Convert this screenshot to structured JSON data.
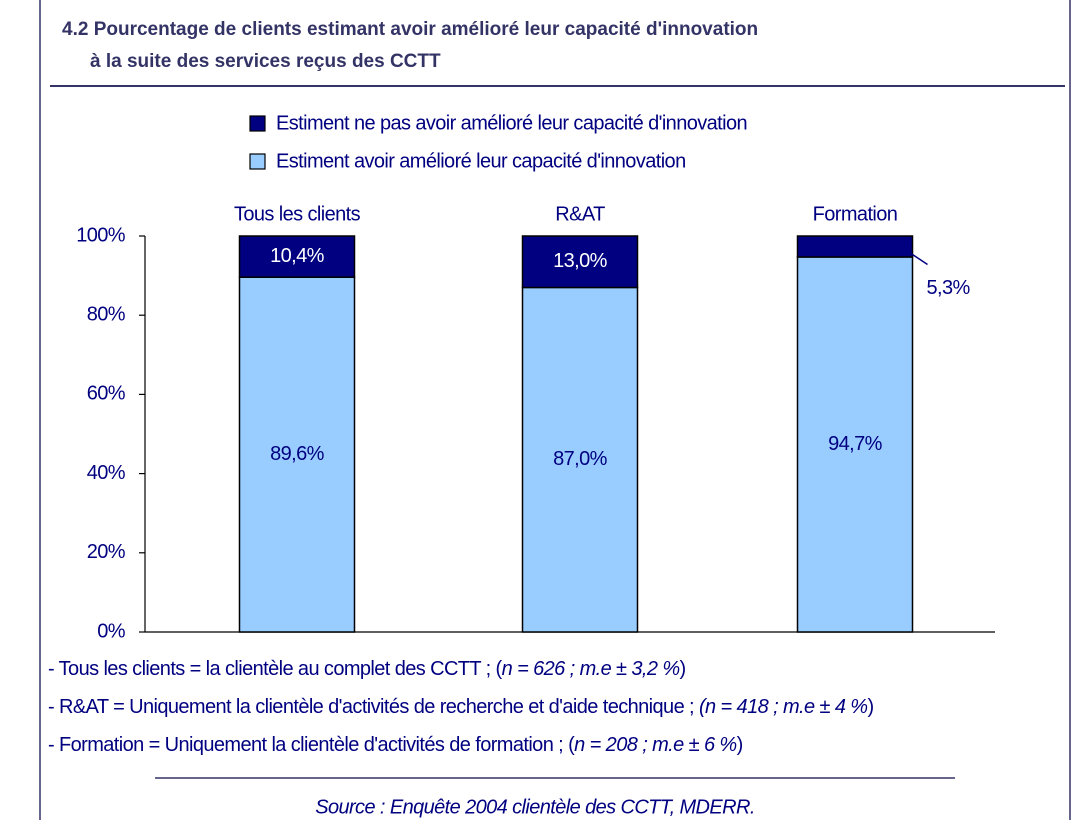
{
  "chart_data": {
    "type": "stacked_bar",
    "title": [
      "4.2 Pourcentage de clients estimant avoir amélioré leur capacité d'innovation",
      "à la suite des services reçus des CCTT"
    ],
    "categories": [
      "Tous les clients",
      "R&AT",
      "Formation"
    ],
    "series": [
      {
        "name": "Estiment avoir amélioré leur capacité d'innovation",
        "color": "#99ccff",
        "values": [
          89.6,
          87.0,
          94.7
        ],
        "value_labels": [
          "89,6%",
          "87,0%",
          "94,7%"
        ]
      },
      {
        "name": "Estiment ne pas avoir amélioré leur capacité d'innovation",
        "color": "#000080",
        "values": [
          10.4,
          13.0,
          5.3
        ],
        "value_labels": [
          "10,4%",
          "13,0%",
          "5,3%"
        ]
      }
    ],
    "ylim": [
      0,
      100
    ],
    "yticks": [
      {
        "value": 0,
        "label": "0%"
      },
      {
        "value": 20,
        "label": "20%"
      },
      {
        "value": 40,
        "label": "40%"
      },
      {
        "value": 60,
        "label": "60%"
      },
      {
        "value": 80,
        "label": "80%"
      },
      {
        "value": 100,
        "label": "100%"
      }
    ],
    "notes": [
      {
        "text": "- Tous les clients = la clientèle au complet des CCTT ; (",
        "detail": "n = 626 ; m.e ± 3,2 %",
        "end": ")"
      },
      {
        "text": "- R&AT = Uniquement la clientèle d'activités de recherche et d'aide technique ; ",
        "detail": "(n = 418 ; m.e ± 4 %",
        "end": ")"
      },
      {
        "text": "- Formation = Uniquement la clientèle d'activités de formation ; (",
        "detail": "n = 208 ; m.e ± 6 %",
        "end": ")"
      }
    ],
    "source": "Source : Enquête 2004 clientèle des CCTT, MDERR."
  }
}
